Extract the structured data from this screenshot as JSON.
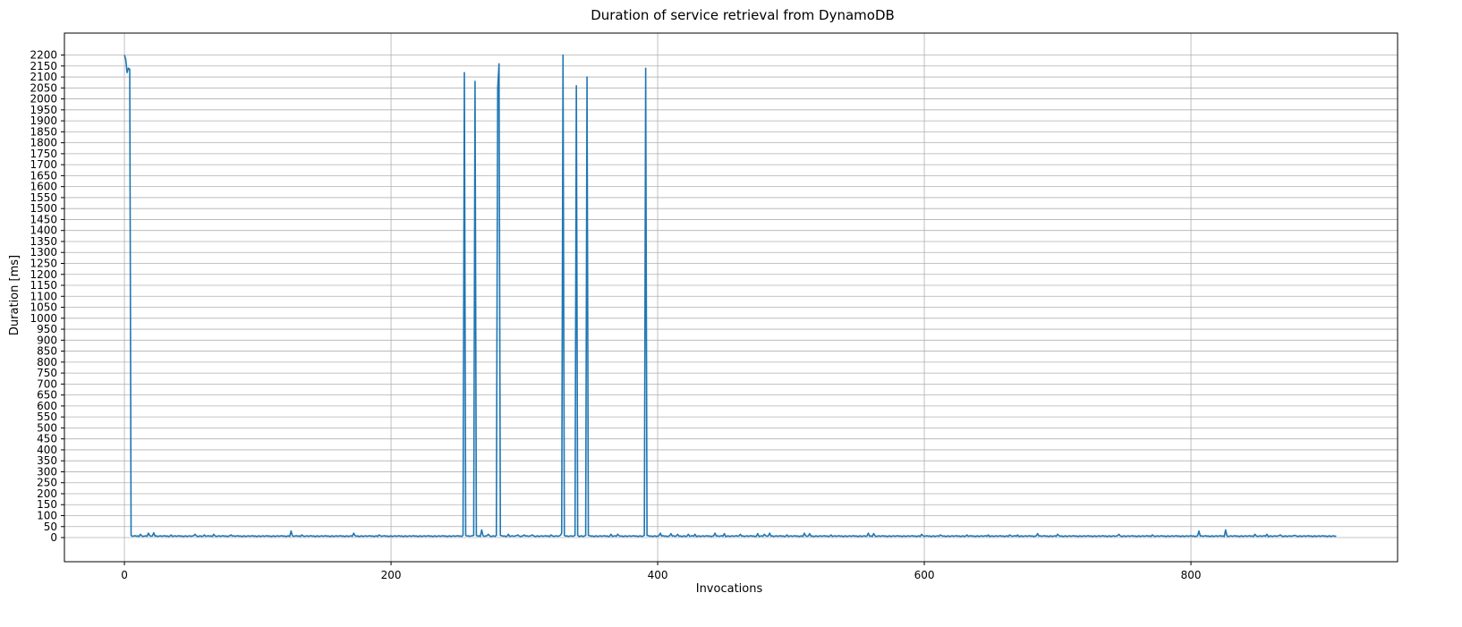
{
  "chart_data": {
    "type": "line",
    "title": "Duration of service retrieval from DynamoDB",
    "xlabel": "Invocations",
    "ylabel": "Duration [ms]",
    "xlim": [
      -45,
      955
    ],
    "ylim": [
      -110,
      2300
    ],
    "x_ticks": [
      0,
      200,
      400,
      600,
      800
    ],
    "y_ticks": [
      0,
      50,
      100,
      150,
      200,
      250,
      300,
      350,
      400,
      450,
      500,
      550,
      600,
      650,
      700,
      750,
      800,
      850,
      900,
      950,
      1000,
      1050,
      1100,
      1150,
      1200,
      1250,
      1300,
      1350,
      1400,
      1450,
      1500,
      1550,
      1600,
      1650,
      1700,
      1750,
      1800,
      1850,
      1900,
      1950,
      2000,
      2050,
      2100,
      2150,
      2200
    ],
    "grid": true,
    "line_color": "#1f77b4",
    "n_points": 910,
    "baseline": 5,
    "points": [
      [
        0,
        2200
      ],
      [
        1,
        2180
      ],
      [
        2,
        2120
      ],
      [
        3,
        2140
      ],
      [
        4,
        2135
      ],
      [
        5,
        10
      ],
      [
        12,
        15
      ],
      [
        18,
        20
      ],
      [
        22,
        22
      ],
      [
        35,
        12
      ],
      [
        53,
        15
      ],
      [
        60,
        12
      ],
      [
        67,
        15
      ],
      [
        80,
        12
      ],
      [
        125,
        30
      ],
      [
        133,
        12
      ],
      [
        172,
        20
      ],
      [
        191,
        12
      ],
      [
        254,
        10
      ],
      [
        255,
        2120
      ],
      [
        256,
        10
      ],
      [
        262,
        10
      ],
      [
        263,
        2080
      ],
      [
        264,
        10
      ],
      [
        268,
        35
      ],
      [
        273,
        15
      ],
      [
        279,
        10
      ],
      [
        280,
        2050
      ],
      [
        281,
        2160
      ],
      [
        282,
        10
      ],
      [
        288,
        15
      ],
      [
        295,
        12
      ],
      [
        300,
        12
      ],
      [
        306,
        12
      ],
      [
        320,
        12
      ],
      [
        327,
        10
      ],
      [
        328,
        20
      ],
      [
        329,
        2200
      ],
      [
        330,
        10
      ],
      [
        338,
        10
      ],
      [
        339,
        2060
      ],
      [
        340,
        10
      ],
      [
        346,
        10
      ],
      [
        347,
        2100
      ],
      [
        348,
        10
      ],
      [
        365,
        15
      ],
      [
        370,
        15
      ],
      [
        390,
        10
      ],
      [
        391,
        2140
      ],
      [
        392,
        10
      ],
      [
        402,
        20
      ],
      [
        410,
        18
      ],
      [
        415,
        15
      ],
      [
        423,
        15
      ],
      [
        428,
        15
      ],
      [
        443,
        20
      ],
      [
        450,
        18
      ],
      [
        462,
        15
      ],
      [
        475,
        18
      ],
      [
        480,
        15
      ],
      [
        484,
        20
      ],
      [
        497,
        12
      ],
      [
        510,
        20
      ],
      [
        514,
        18
      ],
      [
        530,
        12
      ],
      [
        558,
        20
      ],
      [
        562,
        18
      ],
      [
        598,
        15
      ],
      [
        612,
        12
      ],
      [
        632,
        12
      ],
      [
        648,
        12
      ],
      [
        664,
        12
      ],
      [
        670,
        12
      ],
      [
        685,
        18
      ],
      [
        700,
        15
      ],
      [
        746,
        15
      ],
      [
        771,
        12
      ],
      [
        806,
        30
      ],
      [
        826,
        35
      ],
      [
        848,
        15
      ],
      [
        857,
        15
      ],
      [
        867,
        12
      ],
      [
        878,
        10
      ]
    ]
  }
}
